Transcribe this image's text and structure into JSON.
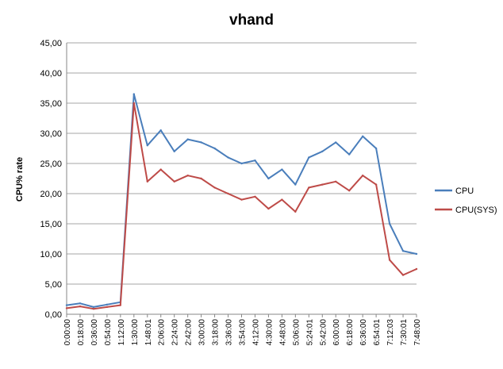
{
  "chart_data": {
    "type": "line",
    "title": "vhand",
    "xlabel": "",
    "ylabel": "CPU% rate",
    "ylim": [
      0,
      45
    ],
    "yticks": [
      "0,00",
      "5,00",
      "10,00",
      "15,00",
      "20,00",
      "25,00",
      "30,00",
      "35,00",
      "40,00",
      "45,00"
    ],
    "grid": true,
    "legend_position": "right",
    "x": [
      "0:00:00",
      "0:18:00",
      "0:36:00",
      "0:54:00",
      "1:12:00",
      "1:30:00",
      "1:48:01",
      "2:06:00",
      "2:24:00",
      "2:42:00",
      "3:00:00",
      "3:18:00",
      "3:36:00",
      "3:54:00",
      "4:12:00",
      "4:30:00",
      "4:48:00",
      "5:06:00",
      "5:24:01",
      "5:42:00",
      "6:00:00",
      "6:18:00",
      "6:36:00",
      "6:54:01",
      "7:12:03",
      "7:30:01",
      "7:48:00"
    ],
    "series": [
      {
        "name": "CPU",
        "color": "#4a7ebb",
        "values": [
          1.5,
          1.8,
          1.2,
          1.6,
          2.0,
          36.5,
          28.0,
          30.5,
          27.0,
          29.0,
          28.5,
          27.5,
          26.0,
          25.0,
          25.5,
          22.5,
          24.0,
          21.5,
          26.0,
          27.0,
          28.5,
          26.5,
          29.5,
          27.5,
          15.0,
          10.5,
          10.0
        ]
      },
      {
        "name": "CPU(SYS)",
        "color": "#be4b48",
        "values": [
          1.0,
          1.3,
          0.9,
          1.2,
          1.5,
          35.0,
          22.0,
          24.0,
          22.0,
          23.0,
          22.5,
          21.0,
          20.0,
          19.0,
          19.5,
          17.5,
          19.0,
          17.0,
          21.0,
          21.5,
          22.0,
          20.5,
          23.0,
          21.5,
          9.0,
          6.5,
          7.5
        ]
      }
    ]
  }
}
